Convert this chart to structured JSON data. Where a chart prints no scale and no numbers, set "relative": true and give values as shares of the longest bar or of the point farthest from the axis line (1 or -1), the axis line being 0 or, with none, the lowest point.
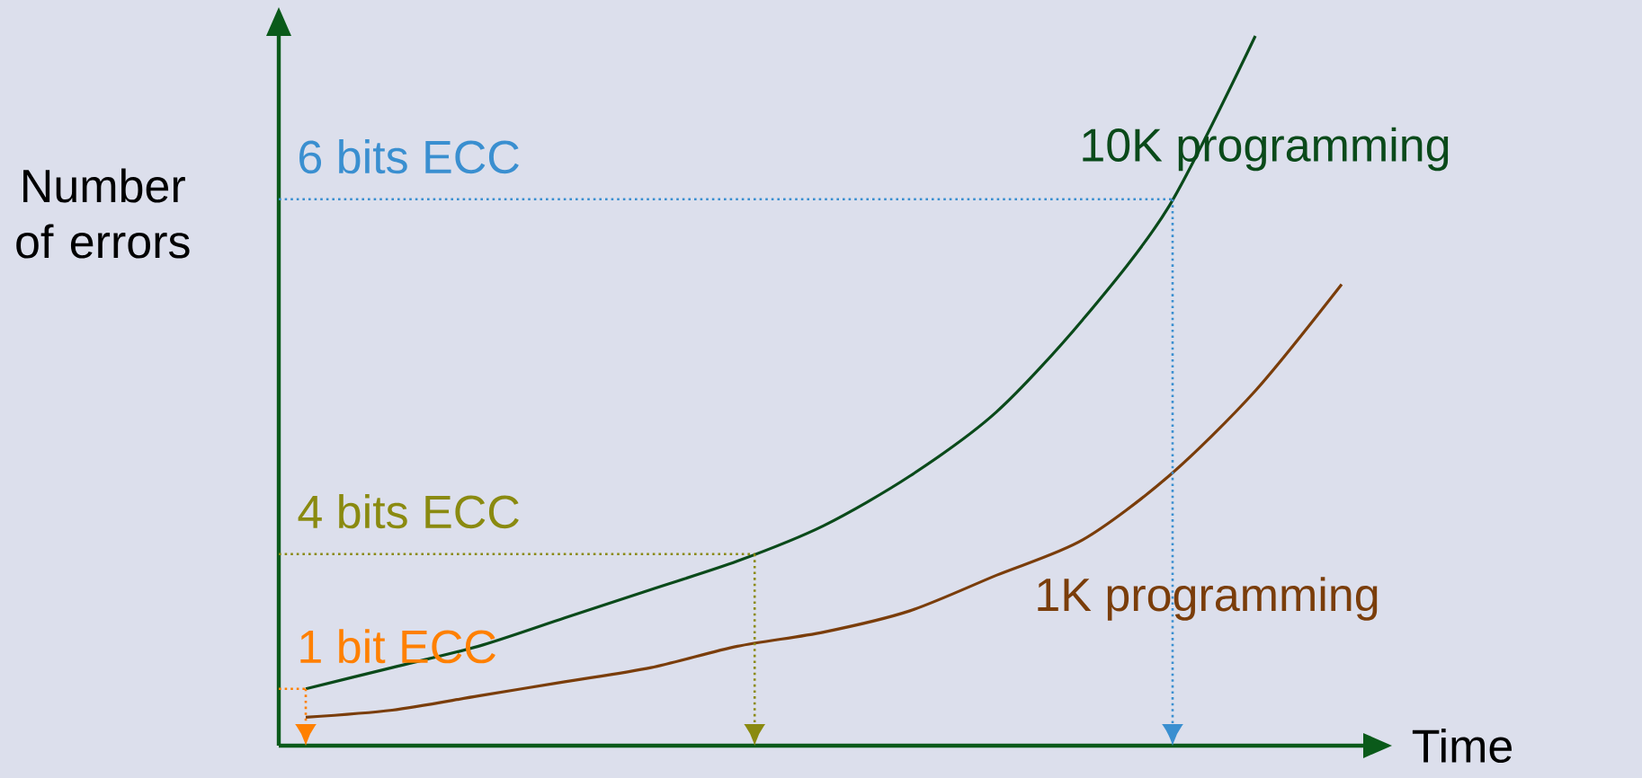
{
  "chart_data": {
    "type": "line",
    "relative": true,
    "xlabel": "Time",
    "ylabel": "Number of errors",
    "categories": [
      null,
      null,
      null,
      null,
      null,
      null,
      null,
      null,
      null,
      null,
      null,
      null,
      null
    ],
    "series": [
      {
        "name": "10K programming",
        "color": "#0a4a1a",
        "values": [
          0.08,
          0.11,
          0.14,
          0.18,
          0.22,
          0.26,
          0.31,
          0.38,
          0.47,
          0.6,
          0.76,
          1,
          null
        ]
      },
      {
        "name": "1K programming",
        "color": "#7a3d0a",
        "values": [
          0.04,
          0.05,
          0.07,
          0.09,
          0.11,
          0.14,
          0.16,
          0.19,
          0.24,
          0.29,
          0.38,
          0.5,
          0.65
        ]
      }
    ],
    "ref_lines": [
      {
        "axis": "y",
        "value": 0.77,
        "label": "6 bits ECC",
        "color": "#3a8fd0",
        "line_style": "dotted"
      },
      {
        "axis": "y",
        "value": 0.27,
        "label": "4 bits ECC",
        "color": "#8a8a10",
        "line_style": "dotted"
      },
      {
        "axis": "y",
        "value": 0.08,
        "label": "1 bit ECC",
        "color": "#ff8000",
        "line_style": "dotted"
      }
    ]
  }
}
